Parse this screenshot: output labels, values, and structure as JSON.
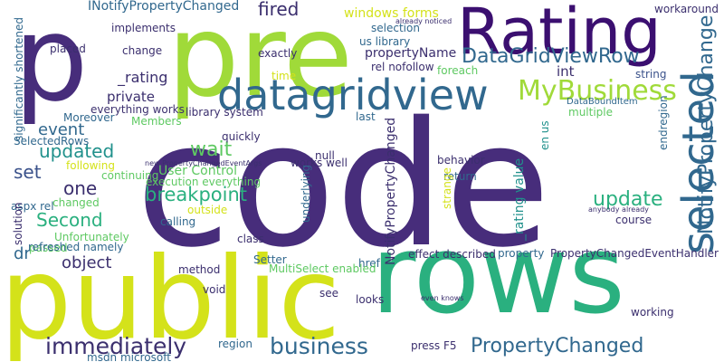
{
  "palette": {
    "background": "#ffffff",
    "dark_purple": "#472d7b",
    "indigo": "#3b2f6e",
    "blue": "#3b528b",
    "teal_blue": "#31688e",
    "teal": "#21918c",
    "green": "#2ab07f",
    "light_green": "#5ec962",
    "lime": "#a0da39",
    "yellow": "#d4e21a"
  },
  "words": [
    {
      "text": "code",
      "color": "#472d7b"
    },
    {
      "text": "pre",
      "color": "#a0da39"
    },
    {
      "text": "p",
      "color": "#472d7b"
    },
    {
      "text": "public",
      "color": "#d4e21a"
    },
    {
      "text": "rows",
      "color": "#2ab07f"
    },
    {
      "text": "Rating",
      "color": "#3b0f70"
    },
    {
      "text": "datagridview",
      "color": "#31688e"
    },
    {
      "text": "selected",
      "color": "#31688e"
    },
    {
      "text": "MyBusiness",
      "color": "#a0da39"
    },
    {
      "text": "DataGridViewRow",
      "color": "#31688e"
    },
    {
      "text": "NotifyPropertyChange",
      "color": "#31688e"
    },
    {
      "text": "business",
      "color": "#31688e"
    },
    {
      "text": "immediately",
      "color": "#3b2f6e"
    },
    {
      "text": "PropertyChanged",
      "color": "#31688e"
    },
    {
      "text": "breakpoint",
      "color": "#2ab07f"
    },
    {
      "text": "Second",
      "color": "#2ab07f"
    },
    {
      "text": "updated",
      "color": "#21918c"
    },
    {
      "text": "update",
      "color": "#2ab07f"
    },
    {
      "text": "object",
      "color": "#3b2f6e"
    },
    {
      "text": "event",
      "color": "#31688e"
    },
    {
      "text": "wait",
      "color": "#5ec962"
    },
    {
      "text": "one",
      "color": "#3b2f6e"
    },
    {
      "text": "set",
      "color": "#3b528b"
    },
    {
      "text": "dr",
      "color": "#31688e"
    },
    {
      "text": "fired",
      "color": "#3b2f6e"
    },
    {
      "text": "_rating",
      "color": "#3b2f6e"
    },
    {
      "text": "private",
      "color": "#3b2f6e"
    },
    {
      "text": "int",
      "color": "#3b2f6e"
    },
    {
      "text": "User Control",
      "color": "#5ec962"
    },
    {
      "text": "propertyName",
      "color": "#3b2f6e"
    },
    {
      "text": "INotifyPropertyChanged",
      "color": "#31688e"
    },
    {
      "text": "NotifyPropertyChanged",
      "color": "#3b2f6e"
    },
    {
      "text": "_rating value",
      "color": "#21918c"
    },
    {
      "text": "windows forms",
      "color": "#d4e21a"
    },
    {
      "text": "implements",
      "color": "#3b2f6e"
    },
    {
      "text": "placed",
      "color": "#3b2f6e"
    },
    {
      "text": "change",
      "color": "#3b2f6e"
    },
    {
      "text": "exactly",
      "color": "#3b2f6e"
    },
    {
      "text": "selection",
      "color": "#31688e"
    },
    {
      "text": "us library",
      "color": "#31688e"
    },
    {
      "text": "rel nofollow",
      "color": "#3b2f6e"
    },
    {
      "text": "foreach",
      "color": "#5ec962"
    },
    {
      "text": "time",
      "color": "#d4e21a"
    },
    {
      "text": "string",
      "color": "#3b528b"
    },
    {
      "text": "workaround",
      "color": "#3b2f6e"
    },
    {
      "text": "already noticed",
      "color": "#3b2f6e"
    },
    {
      "text": "everything works",
      "color": "#3b2f6e"
    },
    {
      "text": "Moreover",
      "color": "#31688e"
    },
    {
      "text": "Members",
      "color": "#5ec962"
    },
    {
      "text": "library system",
      "color": "#3b2f6e"
    },
    {
      "text": "last",
      "color": "#31688e"
    },
    {
      "text": "DataBoundItem",
      "color": "#31688e"
    },
    {
      "text": "multiple",
      "color": "#5ec962"
    },
    {
      "text": "endregion",
      "color": "#31688e"
    },
    {
      "text": "en us",
      "color": "#21918c"
    },
    {
      "text": "significantly shortened",
      "color": "#31688e"
    },
    {
      "text": "SelectedRows",
      "color": "#31688e"
    },
    {
      "text": "following",
      "color": "#d4e21a"
    },
    {
      "text": "quickly",
      "color": "#3b2f6e"
    },
    {
      "text": "new PropertyChangedEventArgs",
      "color": "#3b2f6e"
    },
    {
      "text": "execution everything",
      "color": "#5ec962"
    },
    {
      "text": "continuing",
      "color": "#5ec962"
    },
    {
      "text": "null",
      "color": "#3b2f6e"
    },
    {
      "text": "works well",
      "color": "#3b2f6e"
    },
    {
      "text": "behavior",
      "color": "#3b2f6e"
    },
    {
      "text": "return",
      "color": "#31688e"
    },
    {
      "text": "strange",
      "color": "#d4e21a"
    },
    {
      "text": "aspx rel",
      "color": "#31688e"
    },
    {
      "text": "changed",
      "color": "#5ec962"
    },
    {
      "text": "outside",
      "color": "#d4e21a"
    },
    {
      "text": "calling",
      "color": "#31688e"
    },
    {
      "text": "underlying",
      "color": "#31688e"
    },
    {
      "text": "course",
      "color": "#3b2f6e"
    },
    {
      "text": "anybody already",
      "color": "#3b2f6e"
    },
    {
      "text": "solution",
      "color": "#3b2f6e"
    },
    {
      "text": "Unfortunately",
      "color": "#5ec962"
    },
    {
      "text": "passed",
      "color": "#5ec962"
    },
    {
      "text": "refreshed namely",
      "color": "#31688e"
    },
    {
      "text": "class",
      "color": "#3b2f6e"
    },
    {
      "text": "href",
      "color": "#31688e"
    },
    {
      "text": "effect described",
      "color": "#3b2f6e"
    },
    {
      "text": "property",
      "color": "#31688e"
    },
    {
      "text": "PropertyChangedEventHandler",
      "color": "#3b2f6e"
    },
    {
      "text": "Setter",
      "color": "#31688e"
    },
    {
      "text": "MultiSelect enabled",
      "color": "#5ec962"
    },
    {
      "text": "method",
      "color": "#3b2f6e"
    },
    {
      "text": "void",
      "color": "#3b2f6e"
    },
    {
      "text": "see",
      "color": "#3b2f6e"
    },
    {
      "text": "looks",
      "color": "#3b2f6e"
    },
    {
      "text": "even knows",
      "color": "#3b2f6e"
    },
    {
      "text": "working",
      "color": "#3b2f6e"
    },
    {
      "text": "thing",
      "color": "#21918c"
    },
    {
      "text": "region",
      "color": "#31688e"
    },
    {
      "text": "msdn microsoft",
      "color": "#31688e"
    },
    {
      "text": "press F5",
      "color": "#3b2f6e"
    }
  ]
}
